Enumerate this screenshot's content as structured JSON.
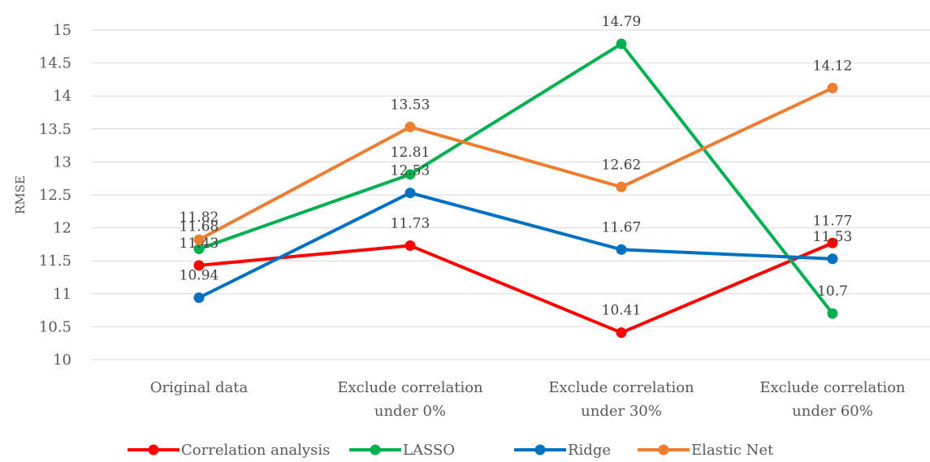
{
  "chart_data": {
    "type": "line",
    "categories": [
      [
        "Original data"
      ],
      [
        "Exclude correlation",
        "under 0%"
      ],
      [
        "Exclude correlation",
        "under 30%"
      ],
      [
        "Exclude correlation",
        "under 60%"
      ]
    ],
    "series": [
      {
        "name": "Correlation analysis",
        "color": "#ff0000",
        "values": [
          11.43,
          11.73,
          10.41,
          11.77
        ]
      },
      {
        "name": "LASSO",
        "color": "#00b050",
        "values": [
          11.68,
          12.81,
          14.79,
          10.7
        ]
      },
      {
        "name": "Ridge",
        "color": "#0070c0",
        "values": [
          10.94,
          12.53,
          11.67,
          11.53
        ]
      },
      {
        "name": "Elastic Net",
        "color": "#ed7d31",
        "values": [
          11.82,
          13.53,
          12.62,
          14.12
        ]
      }
    ],
    "ylabel": "RMSE",
    "xlabel": "",
    "title": "",
    "ylim": [
      10,
      15
    ],
    "yticks": [
      "10",
      "10.5",
      "11",
      "11.5",
      "12",
      "12.5",
      "13",
      "13.5",
      "14",
      "14.5",
      "15"
    ],
    "grid": true,
    "legend": "bottom"
  }
}
